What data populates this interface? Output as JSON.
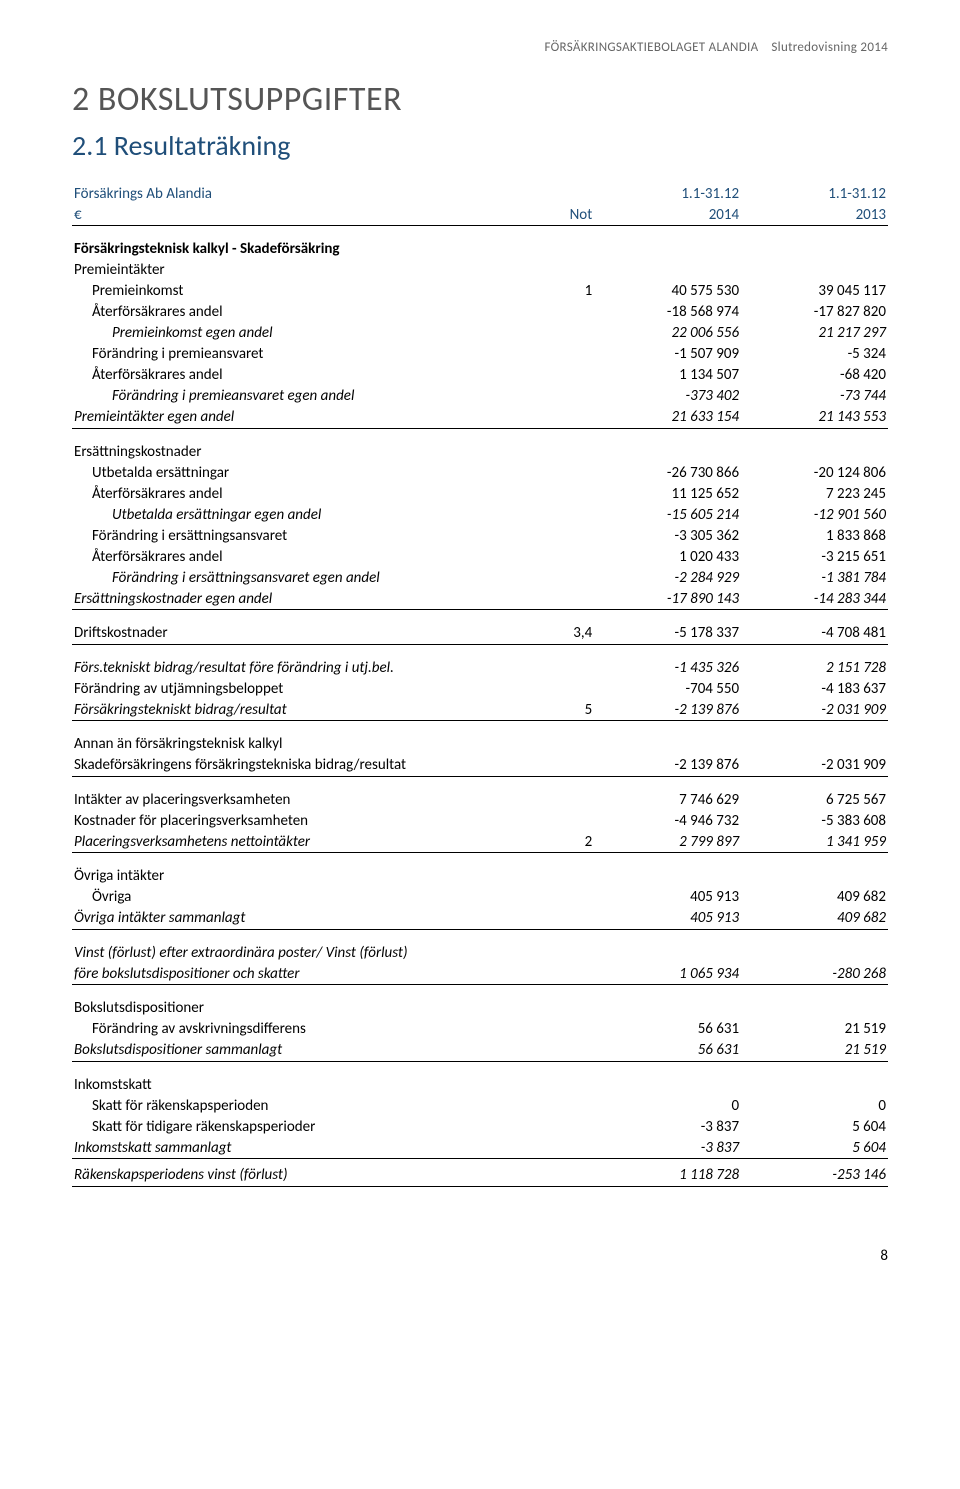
{
  "header": {
    "company": "FÖRSÄKRINGSAKTIEBOLAGET ALANDIA",
    "report": "Slutredovisning 2014"
  },
  "titles": {
    "h1": "2 BOKSLUTSUPPGIFTER",
    "h2": "2.1 Resultaträkning"
  },
  "table_header": {
    "entity": "Försäkrings Ab Alandia",
    "currency": "€",
    "not_label": "Not",
    "period1": "1.1-31.12",
    "period2": "1.1-31.12",
    "year1": "2014",
    "year2": "2013"
  },
  "rows": [
    {
      "type": "section",
      "label": "Försäkringsteknisk kalkyl - Skadeförsäkring"
    },
    {
      "type": "subhead",
      "label": "Premieintäkter",
      "indent": 0
    },
    {
      "type": "data",
      "label": "Premieinkomst",
      "indent": 1,
      "not": "1",
      "v1": "40 575 530",
      "v2": "39 045 117"
    },
    {
      "type": "data",
      "label": "Återförsäkrares andel",
      "indent": 1,
      "v1": "-18 568 974",
      "v2": "-17 827 820"
    },
    {
      "type": "data",
      "label": "Premieinkomst egen andel",
      "indent": 2,
      "italic": true,
      "v1": "22 006 556",
      "v2": "21 217 297"
    },
    {
      "type": "data",
      "label": "Förändring i premieansvaret",
      "indent": 1,
      "v1": "-1 507 909",
      "v2": "-5 324"
    },
    {
      "type": "data",
      "label": "Återförsäkrares andel",
      "indent": 1,
      "v1": "1 134 507",
      "v2": "-68 420"
    },
    {
      "type": "data",
      "label": "Förändring i premieansvaret egen andel",
      "indent": 2,
      "italic": true,
      "v1": "-373 402",
      "v2": "-73 744"
    },
    {
      "type": "data",
      "label": "Premieintäkter egen andel",
      "indent": 0,
      "italic": true,
      "underline": true,
      "v1": "21 633 154",
      "v2": "21 143 553"
    },
    {
      "type": "subhead",
      "label": "Ersättningskostnader",
      "indent": 0,
      "padtop": true
    },
    {
      "type": "data",
      "label": "Utbetalda ersättningar",
      "indent": 1,
      "v1": "-26 730 866",
      "v2": "-20 124 806"
    },
    {
      "type": "data",
      "label": "Återförsäkrares andel",
      "indent": 1,
      "v1": "11 125 652",
      "v2": "7 223 245"
    },
    {
      "type": "data",
      "label": "Utbetalda ersättningar egen andel",
      "indent": 2,
      "italic": true,
      "v1": "-15 605 214",
      "v2": "-12 901 560"
    },
    {
      "type": "data",
      "label": "Förändring i ersättningsansvaret",
      "indent": 1,
      "v1": "-3 305 362",
      "v2": "1 833 868"
    },
    {
      "type": "data",
      "label": "Återförsäkrares andel",
      "indent": 1,
      "v1": "1 020 433",
      "v2": "-3 215 651"
    },
    {
      "type": "data",
      "label": "Förändring i ersättningsansvaret egen andel",
      "indent": 2,
      "italic": true,
      "v1": "-2 284 929",
      "v2": "-1 381 784"
    },
    {
      "type": "data",
      "label": "Ersättningskostnader egen andel",
      "indent": 0,
      "italic": true,
      "underline": true,
      "v1": "-17 890 143",
      "v2": "-14 283 344"
    },
    {
      "type": "data",
      "label": "Driftskostnader",
      "indent": 0,
      "padtop": true,
      "not": "3,4",
      "underline": true,
      "v1": "-5 178 337",
      "v2": "-4 708 481"
    },
    {
      "type": "data",
      "label": "Förs.tekniskt bidrag/resultat före förändring i utj.bel.",
      "indent": 0,
      "italic": true,
      "padtop": true,
      "v1": "-1 435 326",
      "v2": "2 151 728"
    },
    {
      "type": "data",
      "label": "Förändring av utjämningsbeloppet",
      "indent": 0,
      "v1": "-704 550",
      "v2": "-4 183 637"
    },
    {
      "type": "data",
      "label": "Försäkringstekniskt bidrag/resultat",
      "indent": 0,
      "italic": true,
      "not": "5",
      "underline": true,
      "v1": "-2 139 876",
      "v2": "-2 031 909"
    },
    {
      "type": "subhead",
      "label": "Annan än försäkringsteknisk kalkyl",
      "indent": 0,
      "padtop": true
    },
    {
      "type": "data",
      "label": "Skadeförsäkringens försäkringstekniska bidrag/resultat",
      "indent": 0,
      "underline": true,
      "v1": "-2 139 876",
      "v2": "-2 031 909"
    },
    {
      "type": "data",
      "label": "Intäkter av placeringsverksamheten",
      "indent": 0,
      "padtop": true,
      "v1": "7 746 629",
      "v2": "6 725 567"
    },
    {
      "type": "data",
      "label": "Kostnader för placeringsverksamheten",
      "indent": 0,
      "v1": "-4 946 732",
      "v2": "-5 383 608"
    },
    {
      "type": "data",
      "label": "Placeringsverksamhetens nettointäkter",
      "indent": 0,
      "italic": true,
      "not": "2",
      "underline": true,
      "v1": "2 799 897",
      "v2": "1 341 959"
    },
    {
      "type": "subhead",
      "label": "Övriga intäkter",
      "indent": 0,
      "padtop": true
    },
    {
      "type": "data",
      "label": "Övriga",
      "indent": 1,
      "v1": "405 913",
      "v2": "409 682"
    },
    {
      "type": "data",
      "label": "Övriga intäkter sammanlagt",
      "indent": 0,
      "italic": true,
      "underline": true,
      "v1": "405 913",
      "v2": "409 682"
    },
    {
      "type": "subhead",
      "label": "Vinst (förlust) efter extraordinära poster/ Vinst (förlust)",
      "indent": 0,
      "italic": true,
      "padtop": true
    },
    {
      "type": "data",
      "label": "före bokslutsdispositioner och skatter",
      "indent": 0,
      "italic": true,
      "underline": true,
      "v1": "1 065 934",
      "v2": "-280 268"
    },
    {
      "type": "subhead",
      "label": "Bokslutsdispositioner",
      "indent": 0,
      "padtop": true
    },
    {
      "type": "data",
      "label": "Förändring av avskrivningsdifferens",
      "indent": 1,
      "v1": "56 631",
      "v2": "21 519"
    },
    {
      "type": "data",
      "label": "Bokslutsdispositioner sammanlagt",
      "indent": 0,
      "italic": true,
      "underline": true,
      "v1": "56 631",
      "v2": "21 519"
    },
    {
      "type": "subhead",
      "label": "Inkomstskatt",
      "indent": 0,
      "padtop": true
    },
    {
      "type": "data",
      "label": "Skatt för räkenskapsperioden",
      "indent": 1,
      "v1": "0",
      "v2": "0"
    },
    {
      "type": "data",
      "label": "Skatt för tidigare räkenskapsperioder",
      "indent": 1,
      "v1": "-3 837",
      "v2": "5 604"
    },
    {
      "type": "data",
      "label": "Inkomstskatt sammanlagt",
      "indent": 0,
      "italic": true,
      "underline": true,
      "v1": "-3 837",
      "v2": "5 604"
    },
    {
      "type": "spacer"
    },
    {
      "type": "data",
      "label": "Räkenskapsperiodens vinst (förlust)",
      "indent": 0,
      "italic": true,
      "underline": true,
      "v1": "1 118 728",
      "v2": "-253 146"
    }
  ],
  "page_number": "8"
}
